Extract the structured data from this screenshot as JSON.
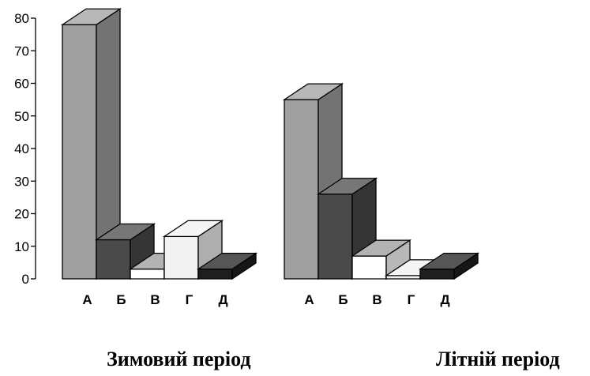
{
  "chart_data": {
    "type": "bar",
    "style": "3d",
    "ylim": [
      0,
      80
    ],
    "yticks": [
      0,
      10,
      20,
      30,
      40,
      50,
      60,
      70,
      80
    ],
    "categories": [
      "А",
      "Б",
      "В",
      "Г",
      "Д"
    ],
    "colors": [
      "#a0a0a0",
      "#4a4a4a",
      "#ffffff",
      "#f2f2f2",
      "#1e1e1e"
    ],
    "groups": [
      {
        "name": "Зимовий період",
        "values": [
          78,
          12,
          3,
          13,
          3
        ]
      },
      {
        "name": "Літній період",
        "values": [
          55,
          26,
          7,
          1,
          3
        ]
      }
    ]
  }
}
